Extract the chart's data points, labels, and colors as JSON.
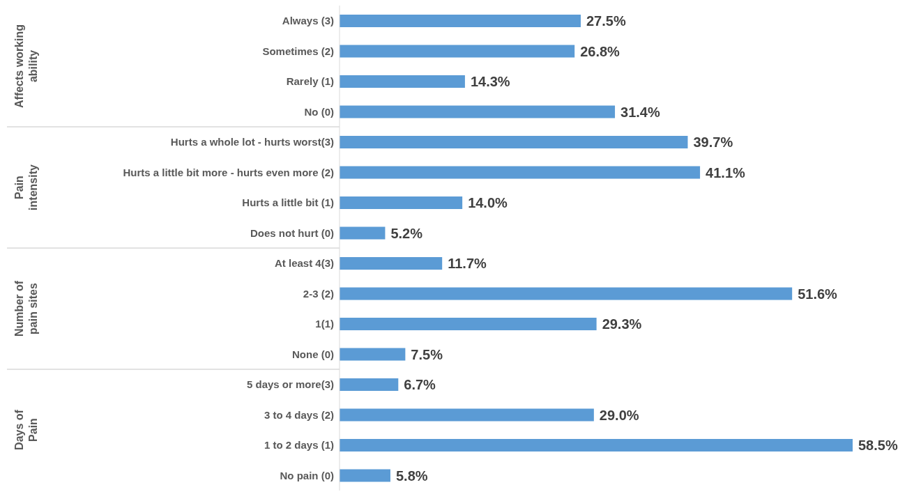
{
  "chart_data": {
    "type": "bar",
    "orientation": "horizontal",
    "categories": [
      "Always (3)",
      "Sometimes (2)",
      "Rarely (1)",
      "No (0)",
      "Hurts a whole lot - hurts worst(3)",
      "Hurts a little bit more - hurts even more (2)",
      "Hurts a little bit (1)",
      "Does not hurt (0)",
      "At least 4(3)",
      "2-3 (2)",
      "1(1)",
      "None  (0)",
      "5 days or more(3)",
      "3 to 4 days (2)",
      "1 to 2 days (1)",
      "No pain (0)"
    ],
    "values": [
      27.5,
      26.8,
      14.3,
      31.4,
      39.7,
      41.1,
      14.0,
      5.2,
      11.7,
      51.6,
      29.3,
      7.5,
      6.7,
      29.0,
      58.5,
      5.8
    ],
    "value_labels": [
      "27.5%",
      "26.8%",
      "14.3%",
      "31.4%",
      "39.7%",
      "41.1%",
      "14.0%",
      "5.2%",
      "11.7%",
      "51.6%",
      "29.3%",
      "7.5%",
      "6.7%",
      "29.0%",
      "58.5%",
      "5.8%"
    ],
    "color": "#5b9bd5",
    "annotations": [
      "Affects working ability",
      "Pain intensity",
      "Number of pain sites",
      "Days of Pain"
    ]
  }
}
